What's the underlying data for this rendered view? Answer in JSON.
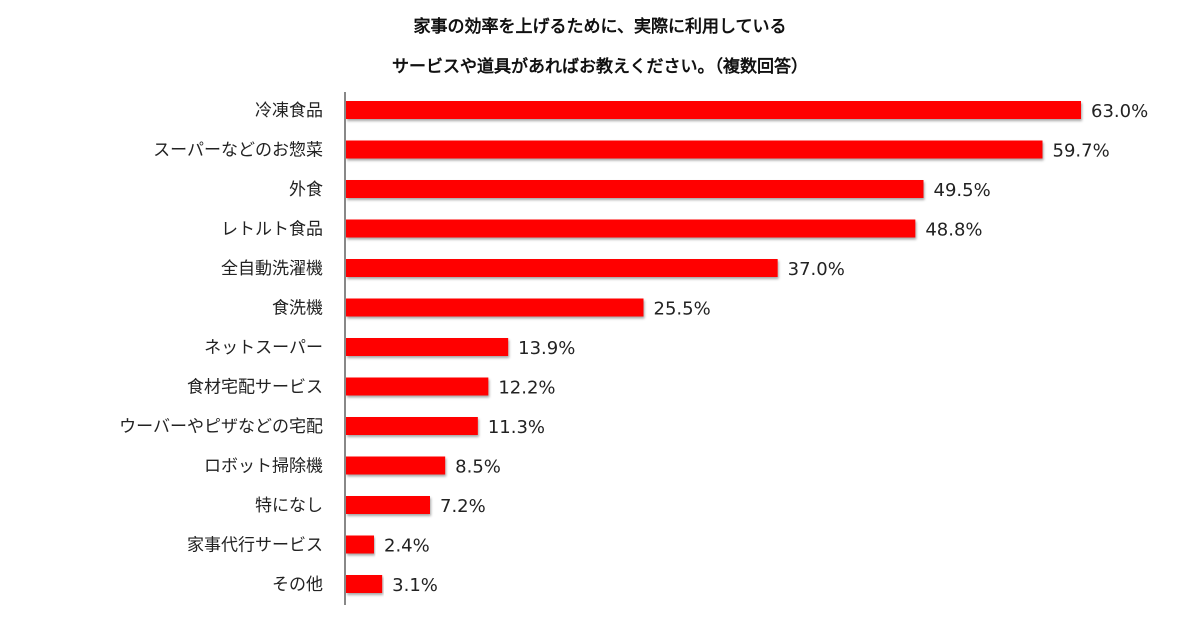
{
  "chart_data": {
    "type": "bar",
    "orientation": "horizontal",
    "title_lines": [
      "家事の効率を上げるために、実際に利用している",
      "サービスや道具があればお教えください。（複数回答）"
    ],
    "categories": [
      "冷凍食品",
      "スーパーなどのお惣菜",
      "外食",
      "レトルト食品",
      "全自動洗濯機",
      "食洗機",
      "ネットスーパー",
      "食材宅配サービス",
      "ウーバーやピザなどの宅配",
      "ロボット掃除機",
      "特になし",
      "家事代行サービス",
      "その他"
    ],
    "values": [
      63.0,
      59.7,
      49.5,
      48.8,
      37.0,
      25.5,
      13.9,
      12.2,
      11.3,
      8.5,
      7.2,
      2.4,
      3.1
    ],
    "value_labels": [
      "63.0%",
      "59.7%",
      "49.5%",
      "48.8%",
      "37.0%",
      "25.5%",
      "13.9%",
      "12.2%",
      "11.3%",
      "8.5%",
      "7.2%",
      "2.4%",
      "3.1%"
    ],
    "unit": "%",
    "xlim": [
      0,
      63
    ],
    "grid": false,
    "bar_color": "#ff0000"
  }
}
